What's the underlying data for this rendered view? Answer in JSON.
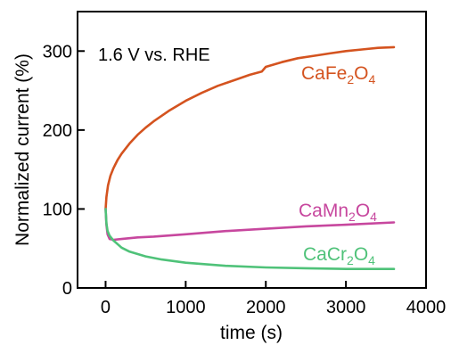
{
  "chart_data": {
    "type": "line",
    "title": "",
    "xlabel": "time (s)",
    "ylabel": "Normalized current (%)",
    "xlim": [
      -350,
      4000
    ],
    "ylim": [
      0,
      350
    ],
    "xticks": [
      "0",
      "1000",
      "2000",
      "3000",
      "4000"
    ],
    "yticks": [
      "0",
      "100",
      "200",
      "300"
    ],
    "annotation": "1.6 V vs. RHE",
    "grid": false,
    "series": [
      {
        "name": "CaFe2O4",
        "label_main": "CaFe",
        "label_sub1": "2",
        "label_mid": "O",
        "label_sub2": "4",
        "color": "#d4531f",
        "x": [
          0,
          10,
          30,
          60,
          100,
          150,
          200,
          300,
          400,
          500,
          600,
          800,
          1000,
          1200,
          1400,
          1600,
          1800,
          1950,
          2000,
          2200,
          2400,
          2600,
          2800,
          3000,
          3200,
          3400,
          3600
        ],
        "y": [
          100,
          115,
          130,
          142,
          152,
          162,
          170,
          183,
          194,
          203,
          211,
          225,
          237,
          247,
          256,
          263,
          270,
          274,
          280,
          286,
          291,
          294,
          297,
          300,
          302,
          304,
          305
        ]
      },
      {
        "name": "CaMn2O4",
        "label_main": "CaMn",
        "label_sub1": "2",
        "label_mid": "O",
        "label_sub2": "4",
        "color": "#c7479e",
        "x": [
          0,
          10,
          25,
          50,
          100,
          200,
          400,
          600,
          1000,
          1500,
          2000,
          2500,
          3000,
          3600
        ],
        "y": [
          100,
          80,
          68,
          62,
          61,
          62,
          64,
          65,
          68,
          72,
          75,
          78,
          80,
          83
        ]
      },
      {
        "name": "CaCr2O4",
        "label_main": "CaCr",
        "label_sub1": "2",
        "label_mid": "O",
        "label_sub2": "4",
        "color": "#4fc279",
        "x": [
          0,
          10,
          25,
          50,
          100,
          200,
          300,
          500,
          700,
          1000,
          1500,
          2000,
          2500,
          3000,
          3600
        ],
        "y": [
          100,
          82,
          72,
          66,
          60,
          51,
          46,
          40,
          36,
          32,
          28,
          26,
          25,
          24,
          24
        ]
      }
    ]
  }
}
